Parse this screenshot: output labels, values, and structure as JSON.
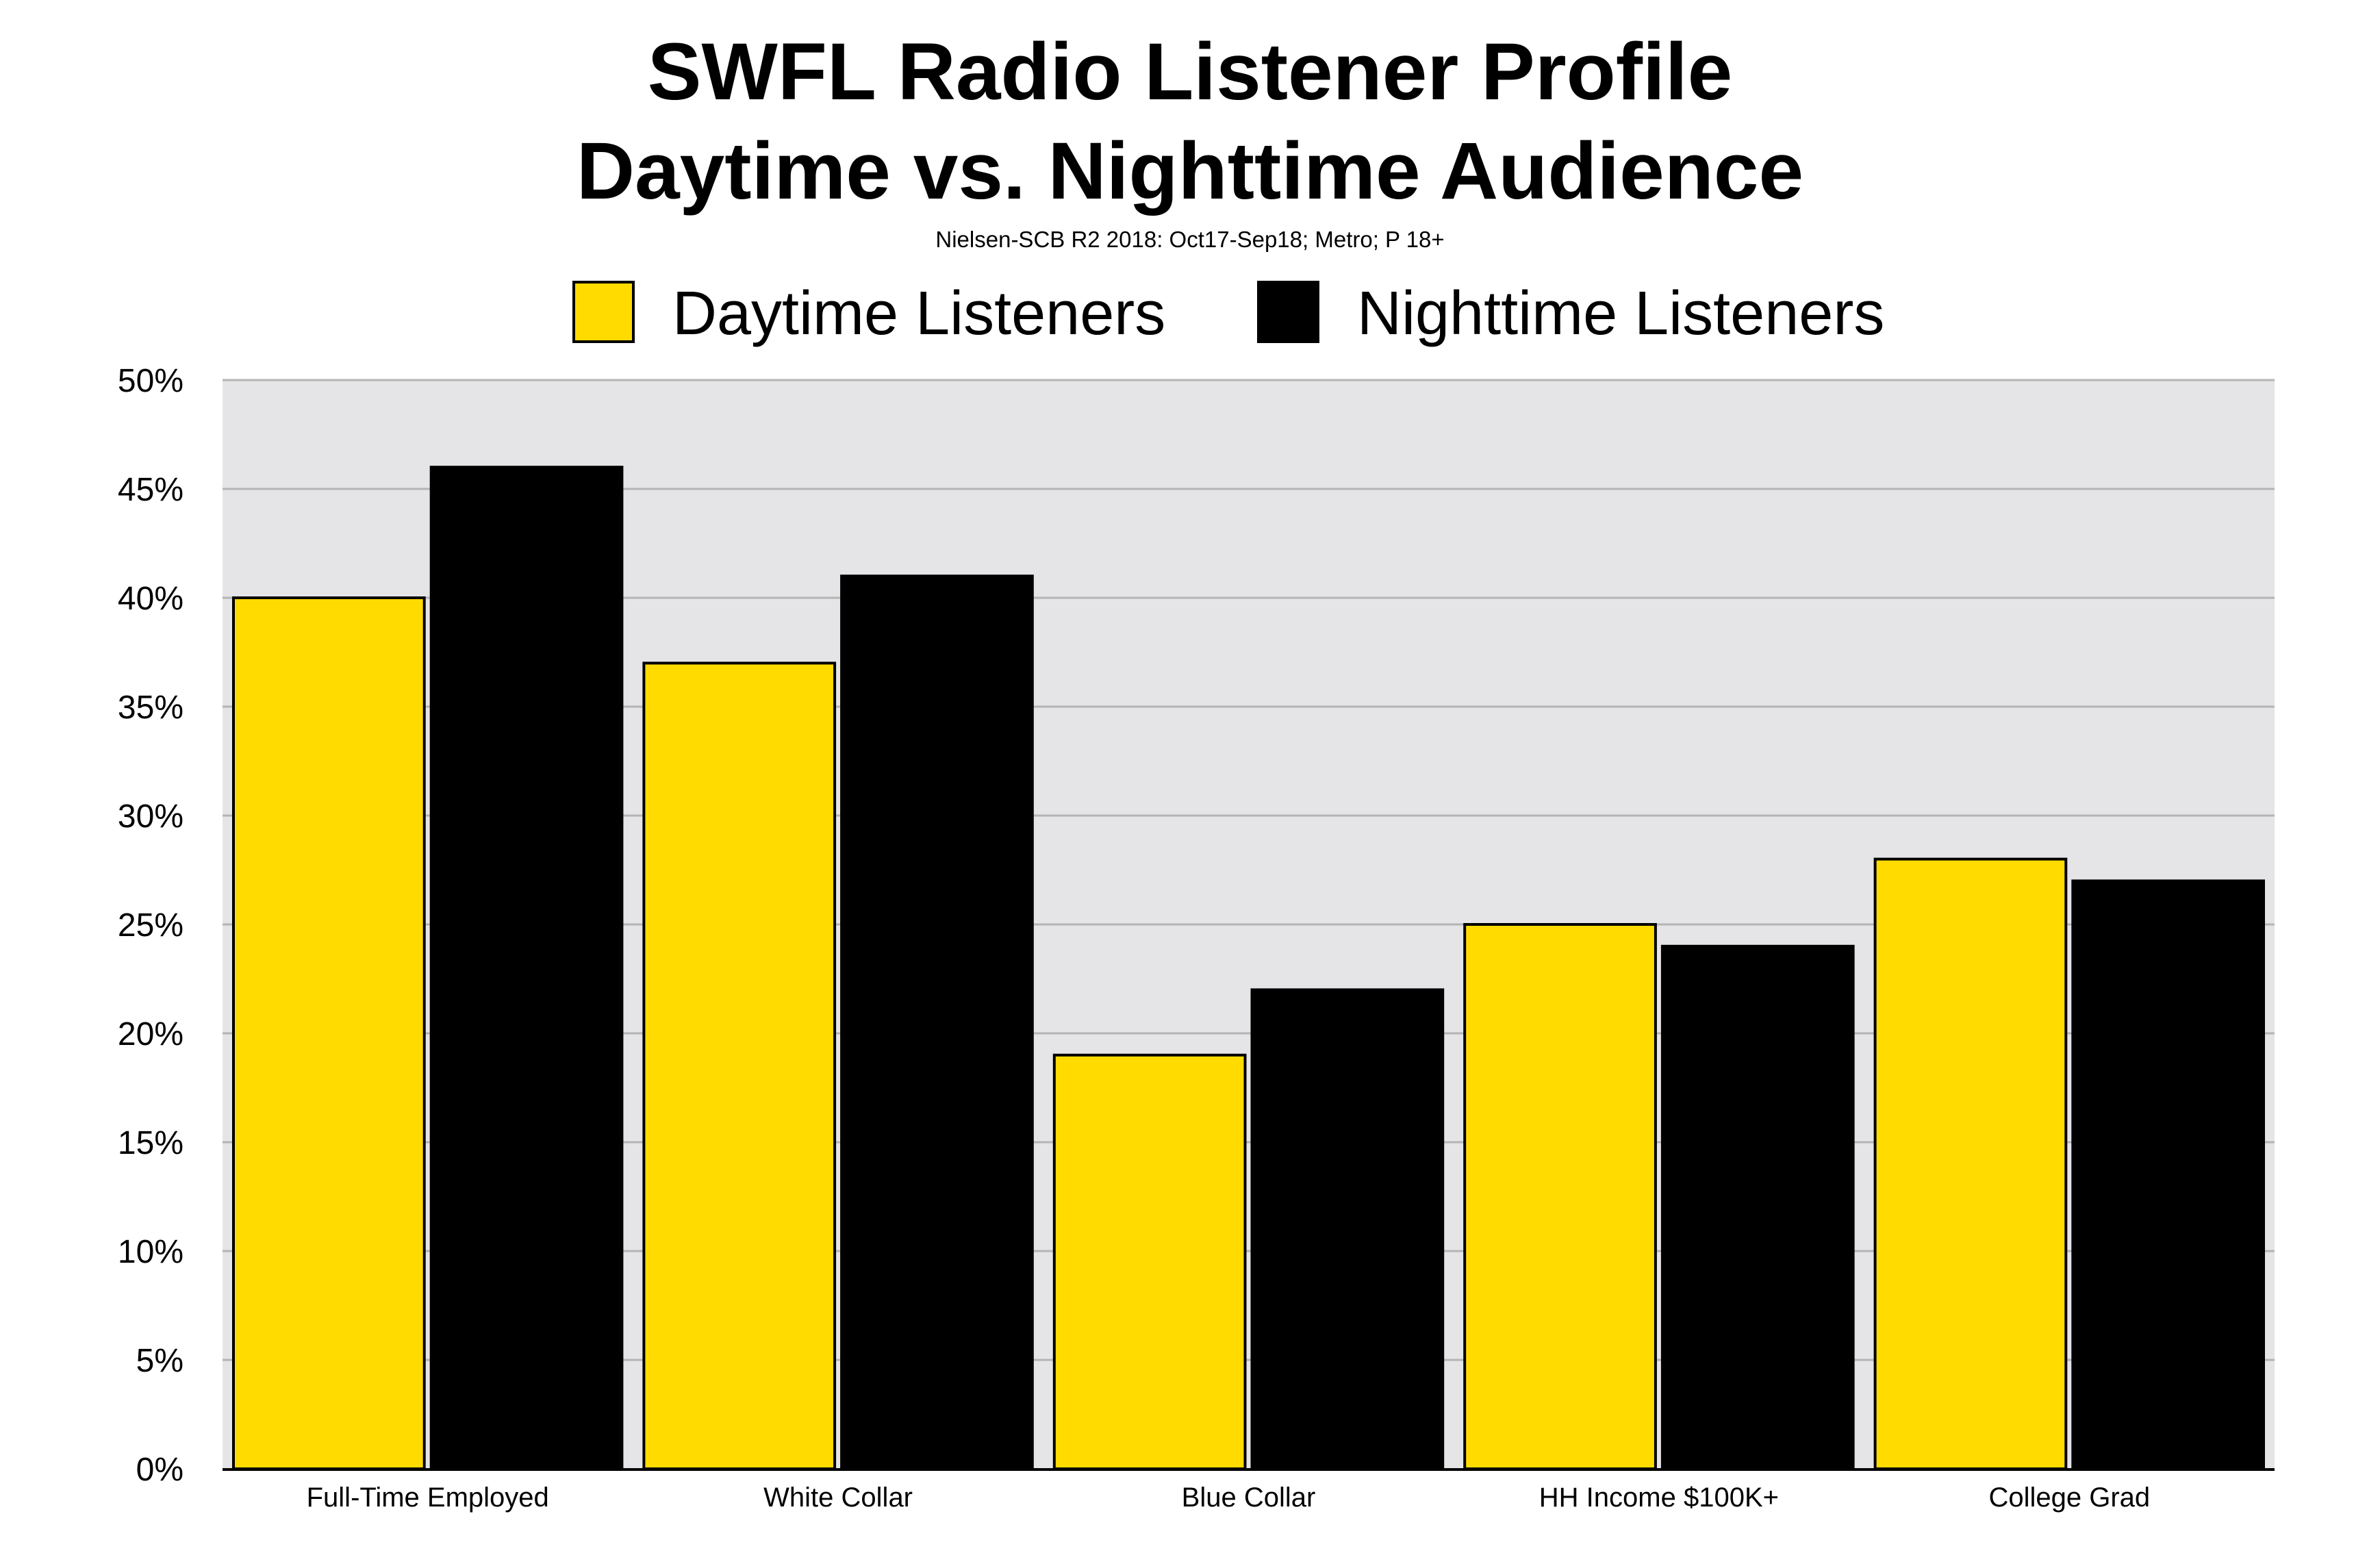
{
  "chart_data": {
    "type": "bar",
    "title": "SWFL Radio Listener Profile",
    "title_line2": "Daytime vs. Nighttime Audience",
    "subtitle": "Nielsen-SCB R2 2018: Oct17-Sep18; Metro; P 18+",
    "categories": [
      "Full-Time Employed",
      "White Collar",
      "Blue Collar",
      "HH Income $100K+",
      "College Grad"
    ],
    "series": [
      {
        "name": "Daytime Listeners",
        "color": "#FFDB00",
        "values": [
          40,
          37,
          19,
          25,
          28
        ]
      },
      {
        "name": "Nighttime Listeners",
        "color": "#000000",
        "values": [
          46,
          41,
          22,
          24,
          27
        ]
      }
    ],
    "ylim": [
      0,
      50
    ],
    "yticks": [
      0,
      5,
      10,
      15,
      20,
      25,
      30,
      35,
      40,
      45,
      50
    ],
    "ytick_labels": [
      "0%",
      "5%",
      "10%",
      "15%",
      "20%",
      "25%",
      "30%",
      "35%",
      "40%",
      "45%",
      "50%"
    ],
    "xlabel": "",
    "ylabel": "",
    "grid": true,
    "legend_position": "top-center",
    "plot_background": "#E5E5E8",
    "gridline_color": "#B4B4B4"
  }
}
